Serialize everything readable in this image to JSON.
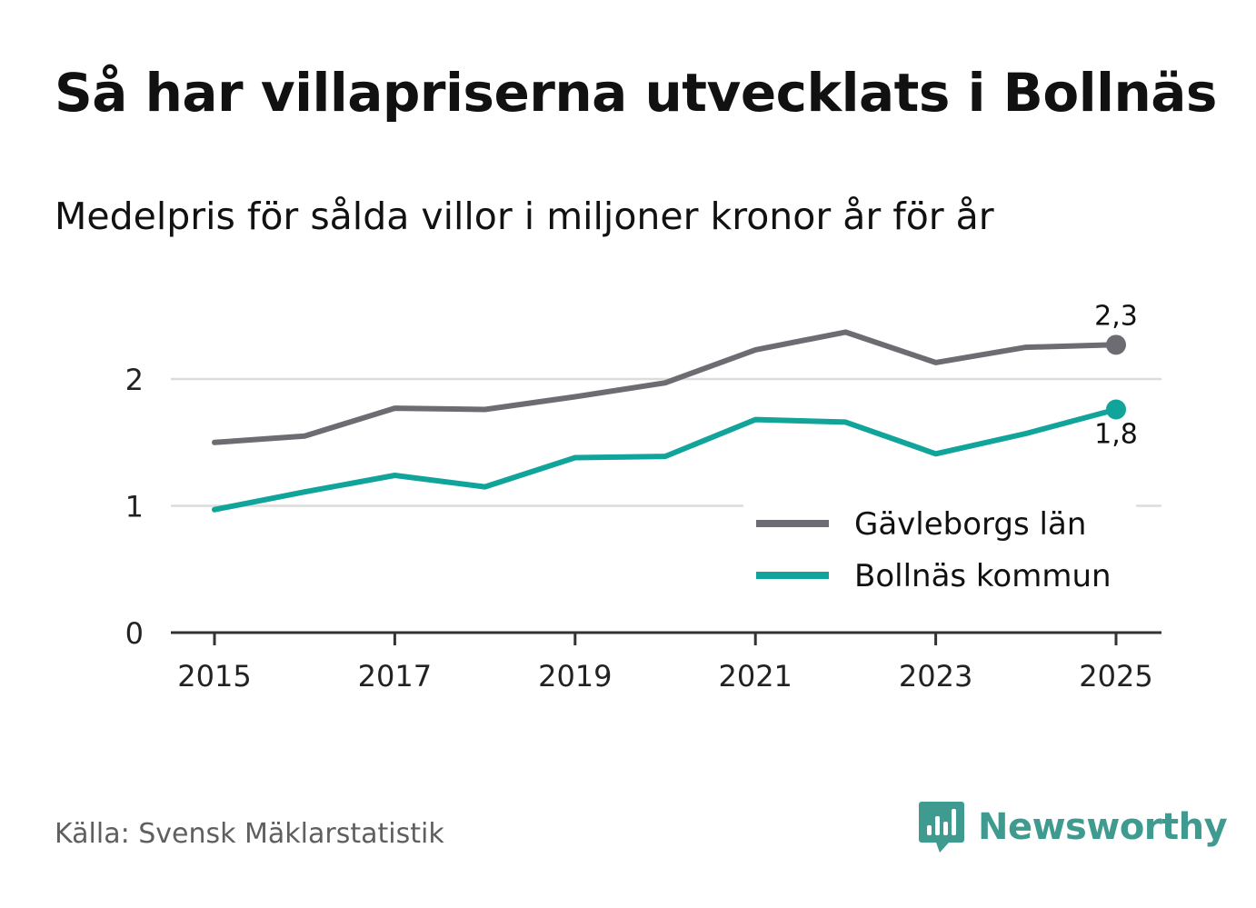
{
  "title": "Så har villapriserna utvecklats i Bollnäs",
  "subtitle": "Medelpris för sålda villor i miljoner kronor år för år",
  "source": "Källa: Svensk Mäklarstatistik",
  "brand": {
    "name": "Newsworthy",
    "icon": "newsworthy-logo-icon",
    "color": "#3f9a8f"
  },
  "chart_data": {
    "type": "line",
    "title": "Så har villapriserna utvecklats i Bollnäs",
    "subtitle": "Medelpris för sålda villor i miljoner kronor år för år",
    "xlabel": "",
    "ylabel": "",
    "x": [
      2015,
      2016,
      2017,
      2018,
      2019,
      2020,
      2021,
      2022,
      2023,
      2024,
      2025
    ],
    "xticks": [
      "2015",
      "2017",
      "2019",
      "2021",
      "2023",
      "2025"
    ],
    "xlim": [
      2014.5,
      2025.5
    ],
    "ylim": [
      0,
      2.5
    ],
    "yticks": [
      "0",
      "1",
      "2"
    ],
    "grid": true,
    "legend_position": "bottom-right",
    "series": [
      {
        "name": "Gävleborgs län",
        "color": "#6d6c73",
        "values": [
          1.5,
          1.55,
          1.77,
          1.76,
          1.86,
          1.97,
          2.23,
          2.37,
          2.13,
          2.25,
          2.27
        ],
        "end_label": "2,3",
        "end_label_position": "above"
      },
      {
        "name": "Bollnäs kommun",
        "color": "#10a49a",
        "values": [
          0.97,
          1.11,
          1.24,
          1.15,
          1.38,
          1.39,
          1.68,
          1.66,
          1.41,
          1.57,
          1.76
        ],
        "end_label": "1,8",
        "end_label_position": "below"
      }
    ]
  }
}
